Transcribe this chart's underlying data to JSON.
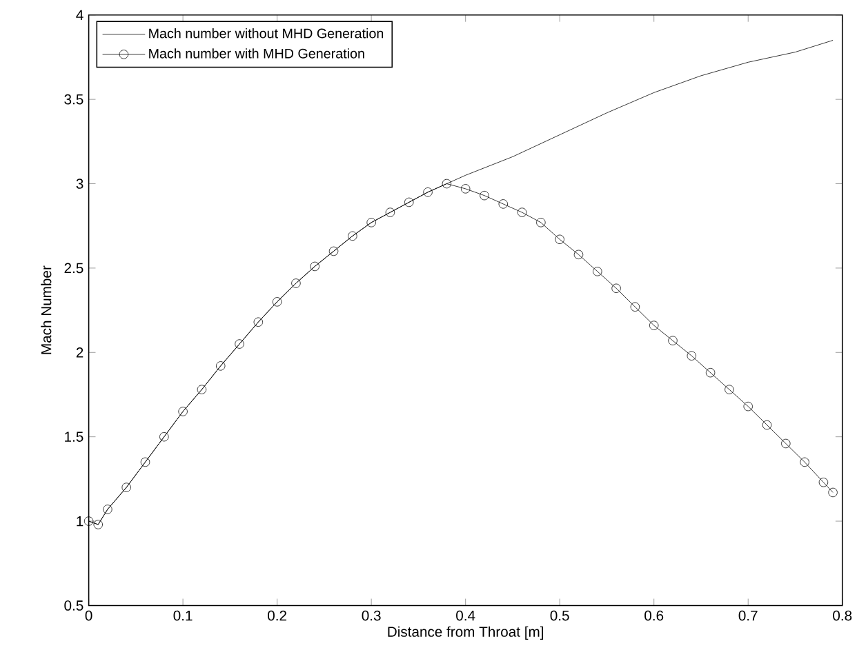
{
  "chart_data": {
    "type": "line",
    "xlabel": "Distance from Throat [m]",
    "ylabel": "Mach Number",
    "xlim": [
      0,
      0.8
    ],
    "ylim": [
      0.5,
      4
    ],
    "xticks": [
      0,
      0.1,
      0.2,
      0.3,
      0.4,
      0.5,
      0.6,
      0.7,
      0.8
    ],
    "yticks": [
      0.5,
      1,
      1.5,
      2,
      2.5,
      3,
      3.5,
      4
    ],
    "grid": false,
    "legend": "top left",
    "series": [
      {
        "name": "Mach number without MHD Generation",
        "color": "#000000",
        "x": [
          0,
          0.01,
          0.02,
          0.04,
          0.06,
          0.08,
          0.1,
          0.12,
          0.14,
          0.16,
          0.18,
          0.2,
          0.22,
          0.24,
          0.26,
          0.28,
          0.3,
          0.32,
          0.34,
          0.36,
          0.38,
          0.4,
          0.45,
          0.5,
          0.55,
          0.6,
          0.65,
          0.7,
          0.75,
          0.79
        ],
        "values": [
          1.0,
          0.98,
          1.07,
          1.2,
          1.35,
          1.5,
          1.65,
          1.78,
          1.92,
          2.05,
          2.18,
          2.3,
          2.41,
          2.51,
          2.6,
          2.69,
          2.77,
          2.83,
          2.89,
          2.95,
          3.0,
          3.05,
          3.16,
          3.29,
          3.42,
          3.54,
          3.64,
          3.72,
          3.78,
          3.85
        ]
      },
      {
        "name": "Mach number with MHD Generation",
        "color": "#000000",
        "marker": "circle",
        "x": [
          0,
          0.01,
          0.02,
          0.04,
          0.06,
          0.08,
          0.1,
          0.12,
          0.14,
          0.16,
          0.18,
          0.2,
          0.22,
          0.24,
          0.26,
          0.28,
          0.3,
          0.32,
          0.34,
          0.36,
          0.38,
          0.4,
          0.42,
          0.44,
          0.46,
          0.48,
          0.5,
          0.52,
          0.54,
          0.56,
          0.58,
          0.6,
          0.62,
          0.64,
          0.66,
          0.68,
          0.7,
          0.72,
          0.74,
          0.76,
          0.78,
          0.79
        ],
        "values": [
          1.0,
          0.98,
          1.07,
          1.2,
          1.35,
          1.5,
          1.65,
          1.78,
          1.92,
          2.05,
          2.18,
          2.3,
          2.41,
          2.51,
          2.6,
          2.69,
          2.77,
          2.83,
          2.89,
          2.95,
          3.0,
          2.97,
          2.93,
          2.88,
          2.83,
          2.77,
          2.67,
          2.58,
          2.48,
          2.38,
          2.27,
          2.16,
          2.07,
          1.98,
          1.88,
          1.78,
          1.68,
          1.57,
          1.46,
          1.35,
          1.23,
          1.17
        ]
      }
    ]
  }
}
